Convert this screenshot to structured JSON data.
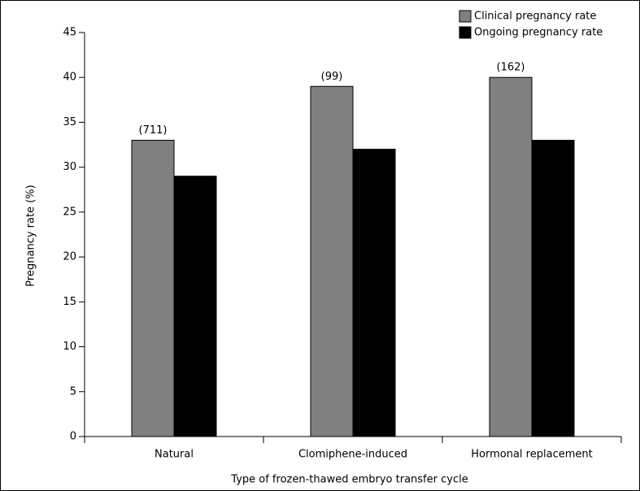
{
  "chart_data": {
    "type": "bar",
    "x_label": "Type of frozen-thawed embryo transfer cycle",
    "y_label": "Pregnancy rate (%)",
    "categories": [
      "Natural",
      "Clomiphene-induced",
      "Hormonal replacement"
    ],
    "series": [
      {
        "name": "Clinical pregnancy rate",
        "color": "#808080",
        "values": [
          33,
          39,
          40
        ]
      },
      {
        "name": "Ongoing pregnancy rate",
        "color": "#000000",
        "values": [
          29,
          32,
          33
        ]
      }
    ],
    "annotations": [
      "(711)",
      "(99)",
      "(162)"
    ],
    "ylim": [
      0,
      45
    ],
    "yticks": [
      0,
      5,
      10,
      15,
      20,
      25,
      30,
      35,
      40,
      45
    ],
    "legend": "upper right",
    "grid": false
  }
}
